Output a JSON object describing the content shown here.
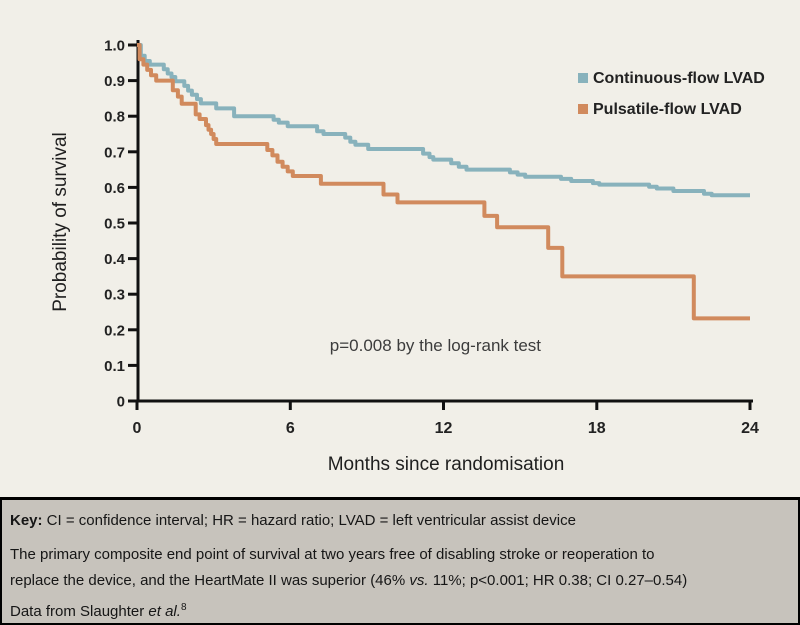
{
  "chart_data": {
    "type": "line",
    "subtype": "kaplan-meier-step",
    "title": "",
    "xlabel": "Months since randomisation",
    "ylabel": "Probability of survival",
    "xlim": [
      0,
      24
    ],
    "ylim": [
      0,
      1.0
    ],
    "grid": false,
    "legend_position": "upper-right-inside",
    "xticks": [
      {
        "v": 0,
        "label": "0"
      },
      {
        "v": 6,
        "label": "6"
      },
      {
        "v": 12,
        "label": "12"
      },
      {
        "v": 18,
        "label": "18"
      },
      {
        "v": 24,
        "label": "24"
      }
    ],
    "yticks": [
      {
        "v": 1.0,
        "label": "1.0"
      },
      {
        "v": 0.9,
        "label": "0.9"
      },
      {
        "v": 0.8,
        "label": "0.8"
      },
      {
        "v": 0.7,
        "label": "0.7"
      },
      {
        "v": 0.6,
        "label": "0.6"
      },
      {
        "v": 0.5,
        "label": "0.5"
      },
      {
        "v": 0.4,
        "label": "0.4"
      },
      {
        "v": 0.3,
        "label": "0.3"
      },
      {
        "v": 0.2,
        "label": "0.2"
      },
      {
        "v": 0.1,
        "label": "0.1"
      },
      {
        "v": 0,
        "label": "0"
      }
    ],
    "series": [
      {
        "name": "Continuous-flow LVAD",
        "color": "#88b2bc",
        "start": 1.0,
        "steps": [
          [
            0.15,
            0.97
          ],
          [
            0.3,
            0.955
          ],
          [
            0.5,
            0.945
          ],
          [
            1.05,
            0.932
          ],
          [
            1.2,
            0.92
          ],
          [
            1.35,
            0.91
          ],
          [
            1.5,
            0.898
          ],
          [
            1.85,
            0.885
          ],
          [
            2.0,
            0.872
          ],
          [
            2.15,
            0.86
          ],
          [
            2.35,
            0.848
          ],
          [
            2.5,
            0.836
          ],
          [
            3.1,
            0.822
          ],
          [
            3.8,
            0.8
          ],
          [
            5.35,
            0.79
          ],
          [
            5.55,
            0.782
          ],
          [
            5.9,
            0.772
          ],
          [
            7.05,
            0.758
          ],
          [
            7.3,
            0.75
          ],
          [
            8.15,
            0.74
          ],
          [
            8.35,
            0.728
          ],
          [
            8.55,
            0.72
          ],
          [
            9.05,
            0.708
          ],
          [
            11.2,
            0.695
          ],
          [
            11.45,
            0.685
          ],
          [
            11.6,
            0.678
          ],
          [
            12.3,
            0.668
          ],
          [
            12.6,
            0.658
          ],
          [
            12.9,
            0.65
          ],
          [
            14.6,
            0.642
          ],
          [
            14.9,
            0.636
          ],
          [
            15.2,
            0.63
          ],
          [
            16.6,
            0.624
          ],
          [
            17.0,
            0.618
          ],
          [
            17.85,
            0.612
          ],
          [
            18.1,
            0.608
          ],
          [
            20.05,
            0.602
          ],
          [
            20.35,
            0.597
          ],
          [
            21.0,
            0.59
          ],
          [
            22.2,
            0.582
          ],
          [
            22.5,
            0.578
          ]
        ],
        "end_value": 0.58
      },
      {
        "name": "Pulsatile-flow LVAD",
        "color": "#d18a5d",
        "start": 1.0,
        "steps": [
          [
            0.1,
            0.96
          ],
          [
            0.25,
            0.945
          ],
          [
            0.4,
            0.93
          ],
          [
            0.55,
            0.915
          ],
          [
            0.75,
            0.9
          ],
          [
            1.4,
            0.873
          ],
          [
            1.6,
            0.855
          ],
          [
            1.75,
            0.835
          ],
          [
            2.3,
            0.805
          ],
          [
            2.45,
            0.792
          ],
          [
            2.7,
            0.775
          ],
          [
            2.8,
            0.762
          ],
          [
            2.9,
            0.75
          ],
          [
            3.0,
            0.736
          ],
          [
            3.1,
            0.722
          ],
          [
            5.1,
            0.705
          ],
          [
            5.3,
            0.69
          ],
          [
            5.5,
            0.672
          ],
          [
            5.7,
            0.658
          ],
          [
            5.9,
            0.645
          ],
          [
            6.1,
            0.632
          ],
          [
            7.2,
            0.61
          ],
          [
            9.65,
            0.58
          ],
          [
            10.2,
            0.558
          ],
          [
            13.6,
            0.52
          ],
          [
            14.1,
            0.488
          ],
          [
            16.1,
            0.43
          ],
          [
            16.65,
            0.35
          ],
          [
            21.8,
            0.232
          ]
        ],
        "end_value": 0.23
      }
    ],
    "annotation": {
      "text": "p=0.008 by the log-rank test",
      "x_month": 7.55,
      "y_value": 0.14
    }
  },
  "caption": {
    "key_bold": "Key:",
    "key_rest": " CI = confidence interval; HR = hazard ratio; LVAD = left ventricular assist device",
    "body_line1": "The primary composite end point of survival at two years free of disabling stroke or reoperation to",
    "body_line2_pre": "replace the device, and the HeartMate II was superior (46% ",
    "body_line2_italic": "vs.",
    "body_line2_post": " 11%; p<0.001; HR 0.38; CI 0.27–0.54)",
    "source_pre": "Data from Slaughter ",
    "source_italic": "et al.",
    "source_sup": "8"
  },
  "colors": {
    "background": "#f1efe8",
    "caption_background": "#c7c3bc",
    "caption_border": "#000000",
    "axis": "#111111",
    "continuous_flow": "#88b2bc",
    "pulsatile_flow": "#d18a5d"
  }
}
